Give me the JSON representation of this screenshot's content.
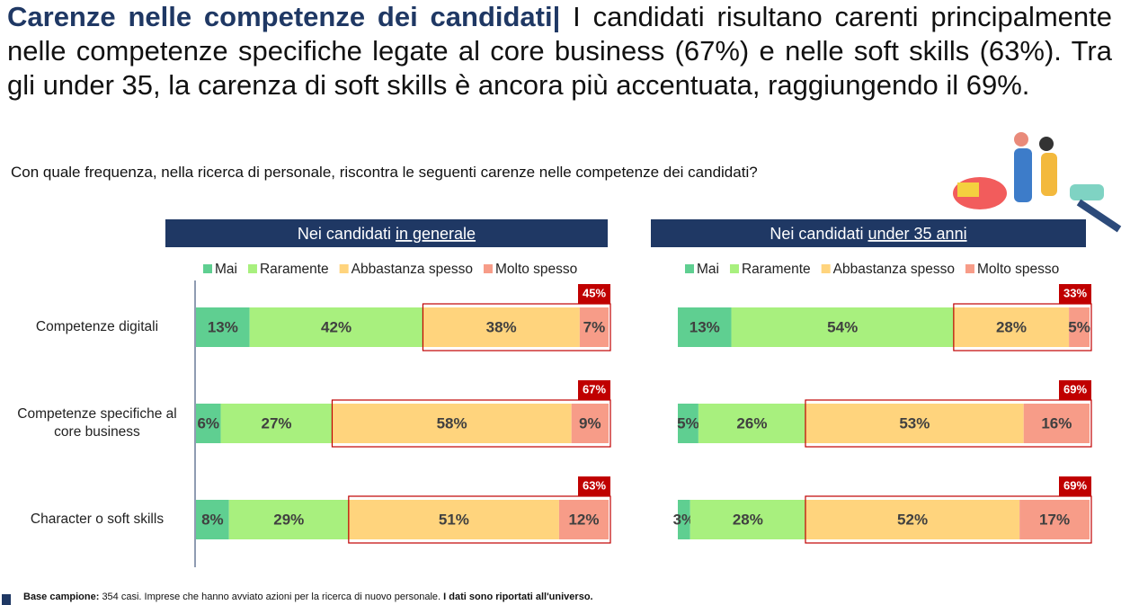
{
  "header": {
    "title": "Carenze nelle competenze dei candidati",
    "separator": "|",
    "text": "I candidati risultano carenti principalmente nelle competenze specifiche legate al core business (67%) e nelle soft skills (63%). Tra gli under 35, la carenza di soft skills è ancora più accentuata, raggiungendo il 69%."
  },
  "question": "Con quale frequenza, nella ricerca di personale, riscontra le seguenti carenze nelle competenze dei candidati?",
  "chart_data": [
    {
      "type": "stacked_bar_horizontal",
      "title": "Nei candidati",
      "title_emphasis": "in generale",
      "categories": [
        "Competenze digitali",
        "Competenze specifiche al core business",
        "Character o soft skills"
      ],
      "xlim": [
        0,
        100
      ],
      "series": [
        {
          "name": "Mai",
          "color": "#5fcf91",
          "values": [
            13,
            6,
            8
          ],
          "value_labels": [
            "13%",
            "6%",
            "8%"
          ]
        },
        {
          "name": "Raramente",
          "color": "#a8f07e",
          "values": [
            42,
            27,
            29
          ],
          "value_labels": [
            "42%",
            "27%",
            "29%"
          ]
        },
        {
          "name": "Abbastanza spesso",
          "color": "#ffd47d",
          "values": [
            38,
            58,
            51
          ],
          "value_labels": [
            "38%",
            "58%",
            "51%"
          ]
        },
        {
          "name": "Molto spesso",
          "color": "#f79c88",
          "values": [
            7,
            9,
            12
          ],
          "value_labels": [
            "7%",
            "9%",
            "12%"
          ]
        }
      ],
      "highlights": {
        "color": "#c00000",
        "values": [
          45,
          67,
          63
        ],
        "value_labels": [
          "45%",
          "67%",
          "63%"
        ]
      }
    },
    {
      "type": "stacked_bar_horizontal",
      "title": "Nei candidati",
      "title_emphasis": "under 35 anni",
      "xlim": [
        0,
        100
      ],
      "series": [
        {
          "name": "Mai",
          "color": "#5fcf91",
          "values": [
            13,
            5,
            3
          ],
          "value_labels": [
            "13%",
            "5%",
            "3%"
          ]
        },
        {
          "name": "Raramente",
          "color": "#a8f07e",
          "values": [
            54,
            26,
            28
          ],
          "value_labels": [
            "54%",
            "26%",
            "28%"
          ]
        },
        {
          "name": "Abbastanza spesso",
          "color": "#ffd47d",
          "values": [
            28,
            53,
            52
          ],
          "value_labels": [
            "28%",
            "53%",
            "52%"
          ]
        },
        {
          "name": "Molto spesso",
          "color": "#f79c88",
          "values": [
            5,
            16,
            17
          ],
          "value_labels": [
            "5%",
            "16%",
            "17%"
          ]
        }
      ],
      "highlights": {
        "color": "#c00000",
        "values": [
          33,
          69,
          69
        ],
        "value_labels": [
          "33%",
          "69%",
          "69%"
        ]
      }
    }
  ],
  "footer": {
    "label": "Base campione:",
    "text": "354 casi. Imprese che hanno avviato azioni per la ricerca di nuovo personale.",
    "note": "I dati sono riportati all'universo."
  }
}
